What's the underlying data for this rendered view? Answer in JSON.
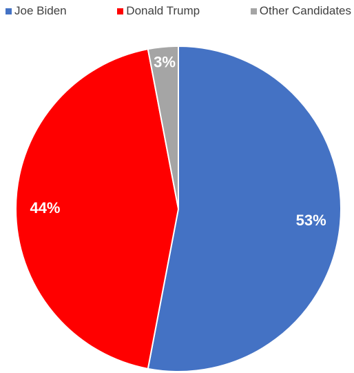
{
  "chart_data": {
    "type": "pie",
    "categories": [
      "Joe Biden",
      "Donald Trump",
      "Other Candidates"
    ],
    "values": [
      53,
      44,
      3
    ],
    "labels": [
      "53%",
      "44%",
      "3%"
    ],
    "colors": [
      "#4472C4",
      "#FF0000",
      "#A5A5A5"
    ],
    "title": "",
    "legend": "top"
  }
}
